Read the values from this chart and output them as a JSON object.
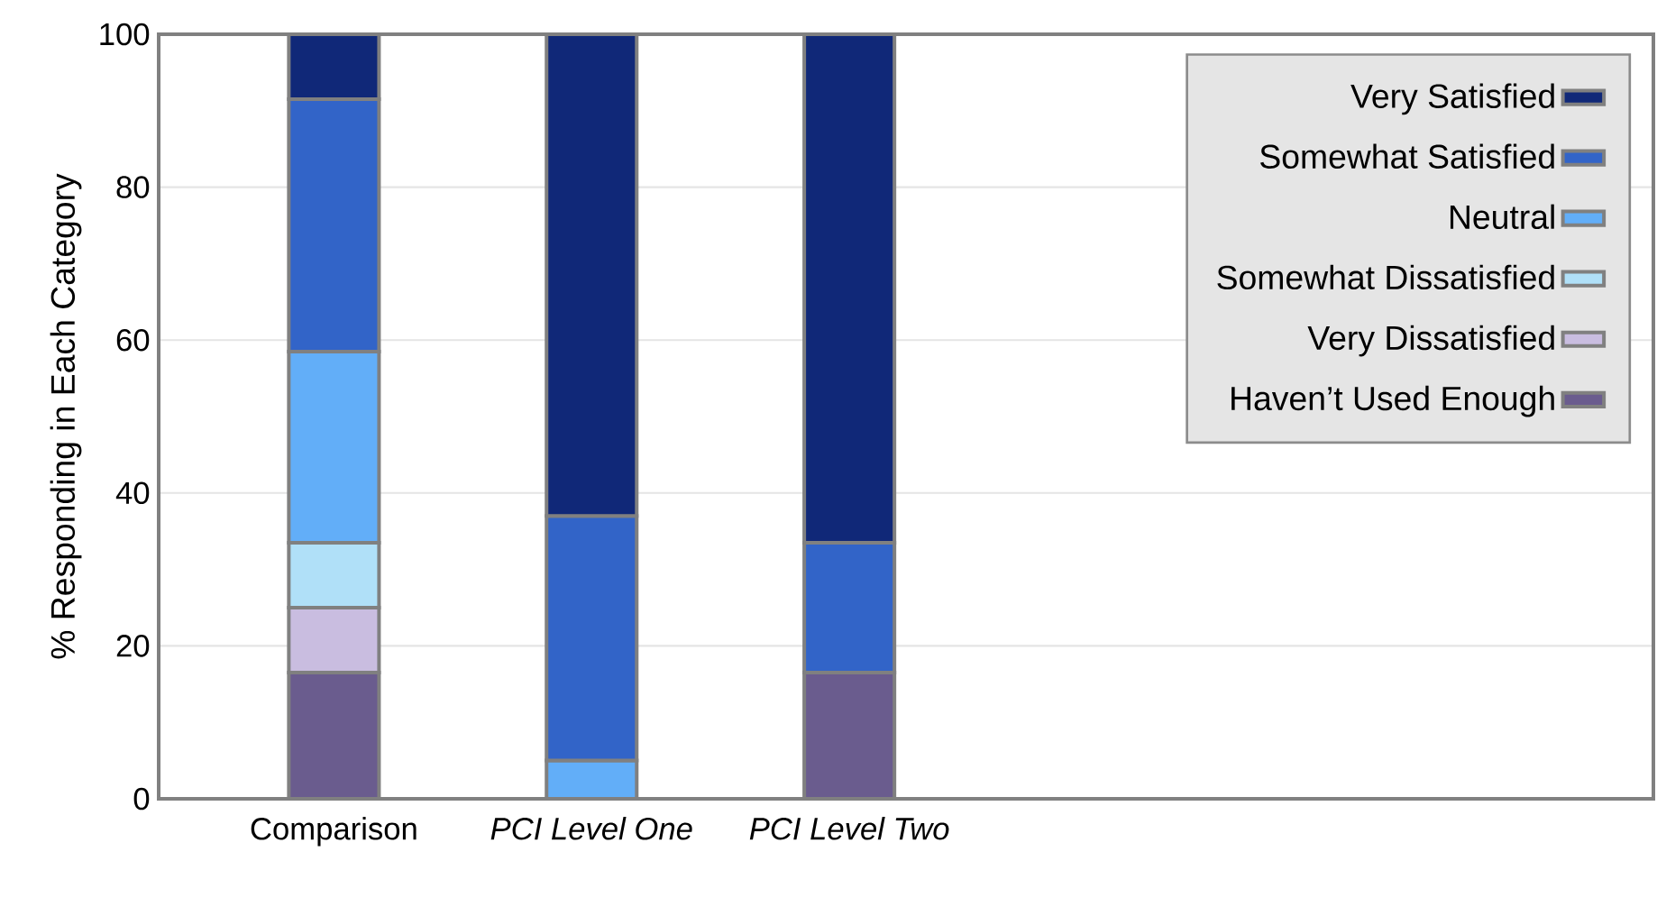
{
  "chart_data": {
    "type": "bar",
    "stacked": true,
    "ylabel": "% Responding in Each Category",
    "categories": [
      "Comparison",
      "PCI Level One",
      "PCI Level Two"
    ],
    "series": [
      {
        "name": "Haven’t Used Enough",
        "color": "#6a5c8e",
        "values": [
          16.5,
          null,
          16.5
        ]
      },
      {
        "name": "Very Dissatisfied",
        "color": "#c9bde0",
        "values": [
          8.5,
          null,
          null
        ]
      },
      {
        "name": "Somewhat Dissatisfied",
        "color": "#b0e0f8",
        "values": [
          8.5,
          null,
          null
        ]
      },
      {
        "name": "Neutral",
        "color": "#62aef8",
        "values": [
          25,
          5,
          null
        ]
      },
      {
        "name": "Somewhat Satisfied",
        "color": "#3264c8",
        "values": [
          33,
          32,
          17
        ]
      },
      {
        "name": "Very Satisfied",
        "color": "#102878",
        "values": [
          8.5,
          63,
          66.5
        ]
      }
    ],
    "ylim": [
      0,
      100
    ],
    "yticks": [
      0,
      20,
      40,
      60,
      80,
      100
    ],
    "grid": "y",
    "legend": "top right"
  }
}
